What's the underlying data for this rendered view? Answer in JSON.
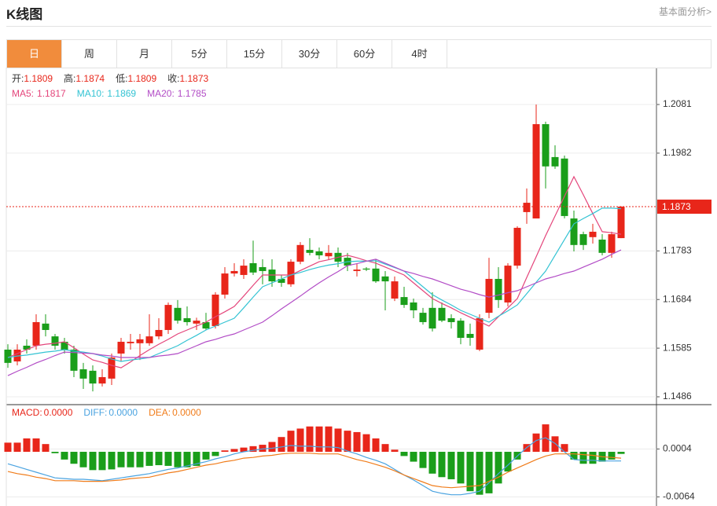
{
  "header": {
    "title": "K线图",
    "link": "基本面分析>"
  },
  "tabs": [
    "日",
    "周",
    "月",
    "5分",
    "15分",
    "30分",
    "60分",
    "4时"
  ],
  "chart_data": [
    {
      "type": "candlestick",
      "ohlc_labels": [
        "开:",
        "高:",
        "低:",
        "收:"
      ],
      "up_color": "#e8261a",
      "down_color": "#1a9e1a",
      "open": [
        1.1582,
        1.1558,
        1.159,
        1.159,
        1.1635,
        1.1609,
        1.1598,
        1.1582,
        1.1542,
        1.1539,
        1.1513,
        1.1523,
        1.1574,
        1.1595,
        1.1595,
        1.1595,
        1.1609,
        1.1622,
        1.1667,
        1.1646,
        1.1635,
        1.1638,
        1.163,
        1.1694,
        1.1737,
        1.1734,
        1.1758,
        1.175,
        1.1745,
        1.1726,
        1.1715,
        1.1761,
        1.1785,
        1.1782,
        1.1772,
        1.1779,
        1.1769,
        1.1742,
        1.1747,
        1.1747,
        1.1731,
        1.1686,
        1.1689,
        1.1678,
        1.1657,
        1.1667,
        1.1667,
        1.1646,
        1.1641,
        1.1614,
        1.1582,
        1.1657,
        1.1726,
        1.1678,
        1.1753,
        1.1862,
        1.1849,
        1.2041,
        1.1974,
        1.1971,
        1.1849,
        1.1817,
        1.1811,
        1.1806,
        1.1779,
        1.1809
      ],
      "high": [
        1.1593,
        1.1593,
        1.1603,
        1.1654,
        1.1654,
        1.1614,
        1.1606,
        1.159,
        1.1555,
        1.155,
        1.1542,
        1.1574,
        1.1606,
        1.1614,
        1.1614,
        1.1654,
        1.1646,
        1.1678,
        1.1683,
        1.167,
        1.1647,
        1.1657,
        1.1699,
        1.175,
        1.1758,
        1.1766,
        1.1804,
        1.1766,
        1.1766,
        1.1734,
        1.1766,
        1.1801,
        1.1809,
        1.179,
        1.1795,
        1.179,
        1.1779,
        1.1758,
        1.175,
        1.1766,
        1.1742,
        1.1731,
        1.171,
        1.1686,
        1.1667,
        1.1699,
        1.1678,
        1.1654,
        1.1646,
        1.1635,
        1.1654,
        1.1769,
        1.175,
        1.1758,
        1.1833,
        1.191,
        1.2081,
        1.2046,
        1.1998,
        1.1977,
        1.1865,
        1.1822,
        1.1838,
        1.1817,
        1.1822,
        1.1874
      ],
      "low": [
        1.1545,
        1.155,
        1.1574,
        1.1582,
        1.1609,
        1.1582,
        1.1574,
        1.1526,
        1.1502,
        1.1497,
        1.1507,
        1.151,
        1.1558,
        1.1582,
        1.1561,
        1.159,
        1.1603,
        1.1614,
        1.1635,
        1.1631,
        1.1622,
        1.1622,
        1.1625,
        1.1686,
        1.1731,
        1.1726,
        1.1734,
        1.1715,
        1.171,
        1.171,
        1.171,
        1.1756,
        1.1774,
        1.1766,
        1.1766,
        1.175,
        1.1742,
        1.1731,
        1.1742,
        1.1718,
        1.1662,
        1.1681,
        1.1667,
        1.1646,
        1.1633,
        1.1619,
        1.1638,
        1.1625,
        1.1593,
        1.159,
        1.1579,
        1.1646,
        1.1667,
        1.167,
        1.1747,
        1.1838,
        1.1849,
        1.191,
        1.195,
        1.1849,
        1.1782,
        1.1785,
        1.1798,
        1.1774,
        1.1769,
        1.1809
      ],
      "close": [
        1.1555,
        1.1582,
        1.1582,
        1.1638,
        1.1622,
        1.159,
        1.1582,
        1.1539,
        1.1523,
        1.1513,
        1.1526,
        1.1566,
        1.1598,
        1.1598,
        1.1603,
        1.1609,
        1.1622,
        1.1673,
        1.1641,
        1.1638,
        1.1641,
        1.1625,
        1.1694,
        1.1737,
        1.1742,
        1.1753,
        1.1739,
        1.1742,
        1.1721,
        1.1718,
        1.1761,
        1.1795,
        1.1779,
        1.1774,
        1.1779,
        1.1761,
        1.1753,
        1.1745,
        1.1745,
        1.1721,
        1.1721,
        1.1721,
        1.1673,
        1.1662,
        1.1638,
        1.1625,
        1.1641,
        1.1638,
        1.1606,
        1.1606,
        1.1646,
        1.1726,
        1.1683,
        1.1753,
        1.183,
        1.1881,
        1.2041,
        1.1955,
        1.1955,
        1.1854,
        1.1795,
        1.1795,
        1.1822,
        1.1779,
        1.1817,
        1.1873
      ],
      "series": [
        {
          "name": "MA5:",
          "color": "#e4457b",
          "values": [
            1.1566,
            1.1574,
            1.1582,
            1.159,
            1.1593,
            1.1595,
            1.1598,
            1.1586,
            1.1573,
            1.1561,
            1.1556,
            1.155,
            1.1545,
            1.1557,
            1.157,
            1.1582,
            1.1593,
            1.1603,
            1.1614,
            1.1622,
            1.163,
            1.1638,
            1.1649,
            1.1659,
            1.167,
            1.1691,
            1.1713,
            1.1734,
            1.1734,
            1.1734,
            1.1734,
            1.1743,
            1.1752,
            1.1761,
            1.1765,
            1.177,
            1.1774,
            1.1769,
            1.1763,
            1.1758,
            1.175,
            1.1742,
            1.1734,
            1.1718,
            1.1702,
            1.1686,
            1.1676,
            1.1667,
            1.1657,
            1.1648,
            1.1639,
            1.163,
            1.1649,
            1.1667,
            1.1686,
            1.1729,
            1.1771,
            1.1814,
            1.1854,
            1.1894,
            1.1934,
            1.1897,
            1.1859,
            1.1822,
            1.182,
            1.1817
          ]
        },
        {
          "name": "MA10:",
          "color": "#33c3d3",
          "values": [
            1.1566,
            1.1569,
            1.1571,
            1.1574,
            1.1577,
            1.1579,
            1.1582,
            1.1579,
            1.1577,
            1.1574,
            1.1569,
            1.1563,
            1.1558,
            1.1561,
            1.1563,
            1.1566,
            1.1574,
            1.1582,
            1.159,
            1.1601,
            1.1611,
            1.1622,
            1.163,
            1.1638,
            1.1646,
            1.1667,
            1.1689,
            1.171,
            1.1718,
            1.1726,
            1.1734,
            1.1739,
            1.1745,
            1.175,
            1.1754,
            1.1757,
            1.1761,
            1.1762,
            1.1762,
            1.1763,
            1.1756,
            1.1749,
            1.1742,
            1.1726,
            1.171,
            1.1694,
            1.1683,
            1.1673,
            1.1662,
            1.1654,
            1.1646,
            1.1638,
            1.165,
            1.1661,
            1.1673,
            1.1696,
            1.1719,
            1.1742,
            1.1774,
            1.1806,
            1.1838,
            1.1849,
            1.1859,
            1.187,
            1.187,
            1.1869
          ]
        },
        {
          "name": "MA20:",
          "color": "#b24cc6",
          "values": [
            1.1529,
            1.1538,
            1.1546,
            1.1555,
            1.1562,
            1.157,
            1.1577,
            1.1576,
            1.1575,
            1.1574,
            1.1571,
            1.1569,
            1.1566,
            1.1566,
            1.1566,
            1.1566,
            1.1569,
            1.1571,
            1.1574,
            1.1582,
            1.159,
            1.1598,
            1.1603,
            1.1609,
            1.1614,
            1.1622,
            1.163,
            1.1638,
            1.1651,
            1.1665,
            1.1678,
            1.1691,
            1.1705,
            1.1718,
            1.173,
            1.1741,
            1.1753,
            1.1757,
            1.1762,
            1.1766,
            1.1758,
            1.175,
            1.1742,
            1.1737,
            1.1731,
            1.1726,
            1.1719,
            1.1712,
            1.1705,
            1.17,
            1.1694,
            1.1689,
            1.1693,
            1.1698,
            1.1702,
            1.171,
            1.1718,
            1.1726,
            1.1731,
            1.1737,
            1.1742,
            1.175,
            1.1758,
            1.1766,
            1.1776,
            1.1785
          ]
        }
      ],
      "ylim": [
        1.147,
        1.2153
      ],
      "yticks": [
        1.2081,
        1.1982,
        1.1783,
        1.1684,
        1.1585,
        1.1486
      ],
      "grid": true
    },
    {
      "type": "macd",
      "series": [
        {
          "name": "MACD:",
          "up_color": "#e8261a",
          "down_color": "#1a9e1a",
          "values": [
            0.0013,
            0.0013,
            0.0019,
            0.0019,
            0.0011,
            -0.0002,
            -0.0011,
            -0.0017,
            -0.0022,
            -0.0026,
            -0.0026,
            -0.0025,
            -0.0022,
            -0.0022,
            -0.0022,
            -0.002,
            -0.0019,
            -0.002,
            -0.0022,
            -0.0022,
            -0.002,
            -0.0011,
            -0.0006,
            0.0002,
            0.0004,
            0.0006,
            0.0008,
            0.001,
            0.0014,
            0.0021,
            0.003,
            0.0033,
            0.0036,
            0.0036,
            0.0036,
            0.0033,
            0.003,
            0.0028,
            0.0025,
            0.0019,
            0.0011,
            0.0003,
            -0.0006,
            -0.0014,
            -0.0023,
            -0.0031,
            -0.0036,
            -0.0039,
            -0.0045,
            -0.0056,
            -0.0061,
            -0.0059,
            -0.0045,
            -0.0028,
            -0.0011,
            0.0011,
            0.0026,
            0.0039,
            0.0022,
            0.0011,
            -0.0011,
            -0.0017,
            -0.0017,
            -0.0014,
            -0.0011,
            -0.0003
          ]
        },
        {
          "name": "DIFF:",
          "color": "#4aa3e0",
          "values": [
            -0.0017,
            -0.0021,
            -0.0025,
            -0.0029,
            -0.0033,
            -0.0037,
            -0.0038,
            -0.0039,
            -0.0039,
            -0.004,
            -0.0041,
            -0.0039,
            -0.0037,
            -0.0035,
            -0.0033,
            -0.0031,
            -0.0028,
            -0.0025,
            -0.0023,
            -0.002,
            -0.0017,
            -0.0014,
            -0.001,
            -0.0007,
            -0.0003,
            0.0,
            0.0002,
            0.0004,
            0.0005,
            0.0007,
            0.0009,
            0.0008,
            0.0008,
            0.0007,
            0.0007,
            0.0006,
            0.0001,
            -0.0003,
            -0.0008,
            -0.0012,
            -0.0017,
            -0.0025,
            -0.0033,
            -0.004,
            -0.0048,
            -0.0056,
            -0.0059,
            -0.0061,
            -0.0061,
            -0.0059,
            -0.0056,
            -0.0044,
            -0.0031,
            -0.0019,
            -0.0006,
            0.0006,
            0.0016,
            0.002,
            0.0012,
            0.0,
            -0.0011,
            -0.0012,
            -0.0012,
            -0.0013,
            -0.0013,
            -0.0013
          ]
        },
        {
          "name": "DEA:",
          "color": "#f07c1a",
          "values": [
            -0.0028,
            -0.0031,
            -0.0033,
            -0.0036,
            -0.0038,
            -0.0041,
            -0.0041,
            -0.0041,
            -0.0042,
            -0.0042,
            -0.0042,
            -0.0041,
            -0.004,
            -0.0038,
            -0.0037,
            -0.0036,
            -0.0033,
            -0.003,
            -0.0028,
            -0.0025,
            -0.0022,
            -0.0019,
            -0.0017,
            -0.0014,
            -0.0012,
            -0.0009,
            -0.0008,
            -0.0006,
            -0.0005,
            -0.0003,
            -0.0002,
            -0.0002,
            -0.0002,
            -0.0003,
            -0.0003,
            -0.0003,
            -0.0007,
            -0.0011,
            -0.0014,
            -0.0018,
            -0.0022,
            -0.0027,
            -0.0033,
            -0.0038,
            -0.0043,
            -0.0048,
            -0.005,
            -0.0051,
            -0.005,
            -0.0049,
            -0.0048,
            -0.0042,
            -0.0036,
            -0.0029,
            -0.0023,
            -0.0017,
            -0.0011,
            -0.0006,
            -0.0003,
            -0.0003,
            -0.0003,
            -0.0004,
            -0.0005,
            -0.0007,
            -0.0008,
            -0.0009
          ]
        }
      ],
      "legend_values": [
        {
          "value": 0,
          "label": "0.0000"
        },
        {
          "value": 0,
          "label": "0.0000"
        },
        {
          "value": 0,
          "label": "0.0000"
        }
      ],
      "ylim": [
        -0.0077,
        0.0067
      ],
      "yticks": [
        0.0004,
        -0.0064
      ],
      "grid": true
    }
  ]
}
